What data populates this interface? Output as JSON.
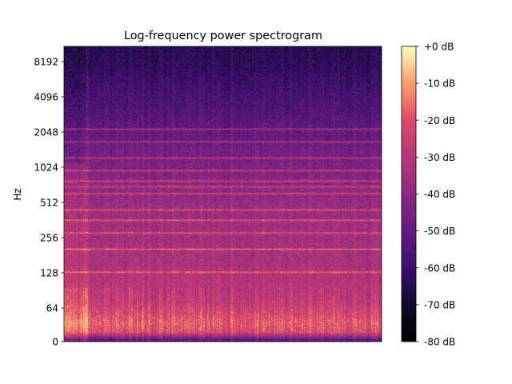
{
  "chart_data": {
    "type": "heatmap",
    "title": "Log-frequency power spectrogram",
    "xlabel": "",
    "ylabel": "Hz",
    "y_scale": "log2-like (0 at bottom, octave ticks)",
    "y_ticks": [
      0,
      64,
      128,
      256,
      512,
      1024,
      2048,
      4096,
      8192
    ],
    "y_tick_labels": [
      "0",
      "64",
      "128",
      "256",
      "512",
      "1024",
      "2048",
      "4096",
      "8192"
    ],
    "x_ticks": [],
    "colormap": "magma",
    "colorbar": {
      "range_db": [
        -80,
        0
      ],
      "ticks": [
        0,
        -10,
        -20,
        -30,
        -40,
        -50,
        -60,
        -70,
        -80
      ],
      "tick_labels": [
        "+0 dB",
        "-10 dB",
        "-20 dB",
        "-30 dB",
        "-40 dB",
        "-50 dB",
        "-60 dB",
        "-70 dB",
        "-80 dB"
      ],
      "placement": "right"
    },
    "grid": false,
    "level_profile_db": [
      {
        "hz": 0,
        "db": -55
      },
      {
        "hz": 32,
        "db": -22
      },
      {
        "hz": 64,
        "db": -18
      },
      {
        "hz": 128,
        "db": -27
      },
      {
        "hz": 256,
        "db": -33
      },
      {
        "hz": 512,
        "db": -35
      },
      {
        "hz": 1024,
        "db": -40
      },
      {
        "hz": 2048,
        "db": -47
      },
      {
        "hz": 4096,
        "db": -55
      },
      {
        "hz": 8192,
        "db": -62
      }
    ],
    "harmonic_bands_hz": [
      220,
      330,
      440,
      550,
      660,
      880,
      990,
      1100,
      1320,
      1650,
      2200,
      2750
    ]
  }
}
